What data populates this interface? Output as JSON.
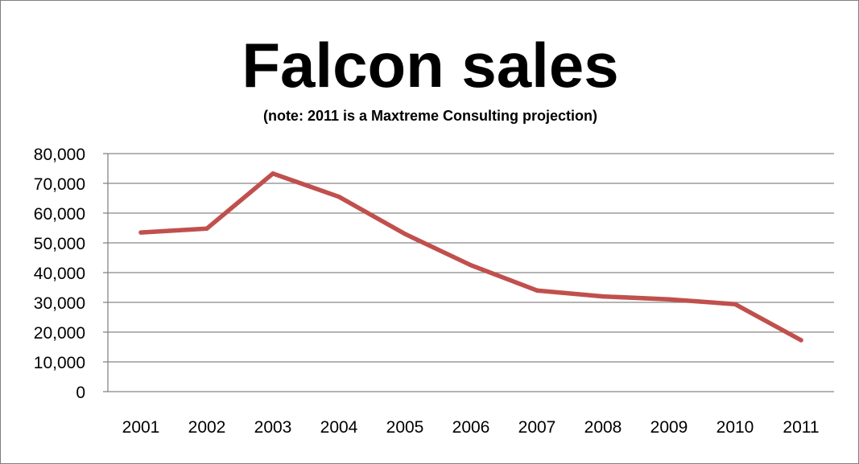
{
  "chart_data": {
    "type": "line",
    "title": "Falcon sales",
    "subtitle": "(note: 2011 is a Maxtreme Consulting projection)",
    "xlabel": "",
    "ylabel": "",
    "categories": [
      "2001",
      "2002",
      "2003",
      "2004",
      "2005",
      "2006",
      "2007",
      "2008",
      "2009",
      "2010",
      "2011"
    ],
    "series": [
      {
        "values": [
          53500,
          54800,
          73300,
          65500,
          53000,
          42500,
          34000,
          32000,
          31000,
          29400,
          17300
        ],
        "color": "#c0504d"
      }
    ],
    "ylim": [
      0,
      80000
    ],
    "yticks": [
      0,
      10000,
      20000,
      30000,
      40000,
      50000,
      60000,
      70000,
      80000
    ],
    "ytick_labels": [
      "0",
      "10,000",
      "20,000",
      "30,000",
      "40,000",
      "50,000",
      "60,000",
      "70,000",
      "80,000"
    ],
    "grid": true,
    "legend": "none",
    "gridline_color": "#868686"
  }
}
